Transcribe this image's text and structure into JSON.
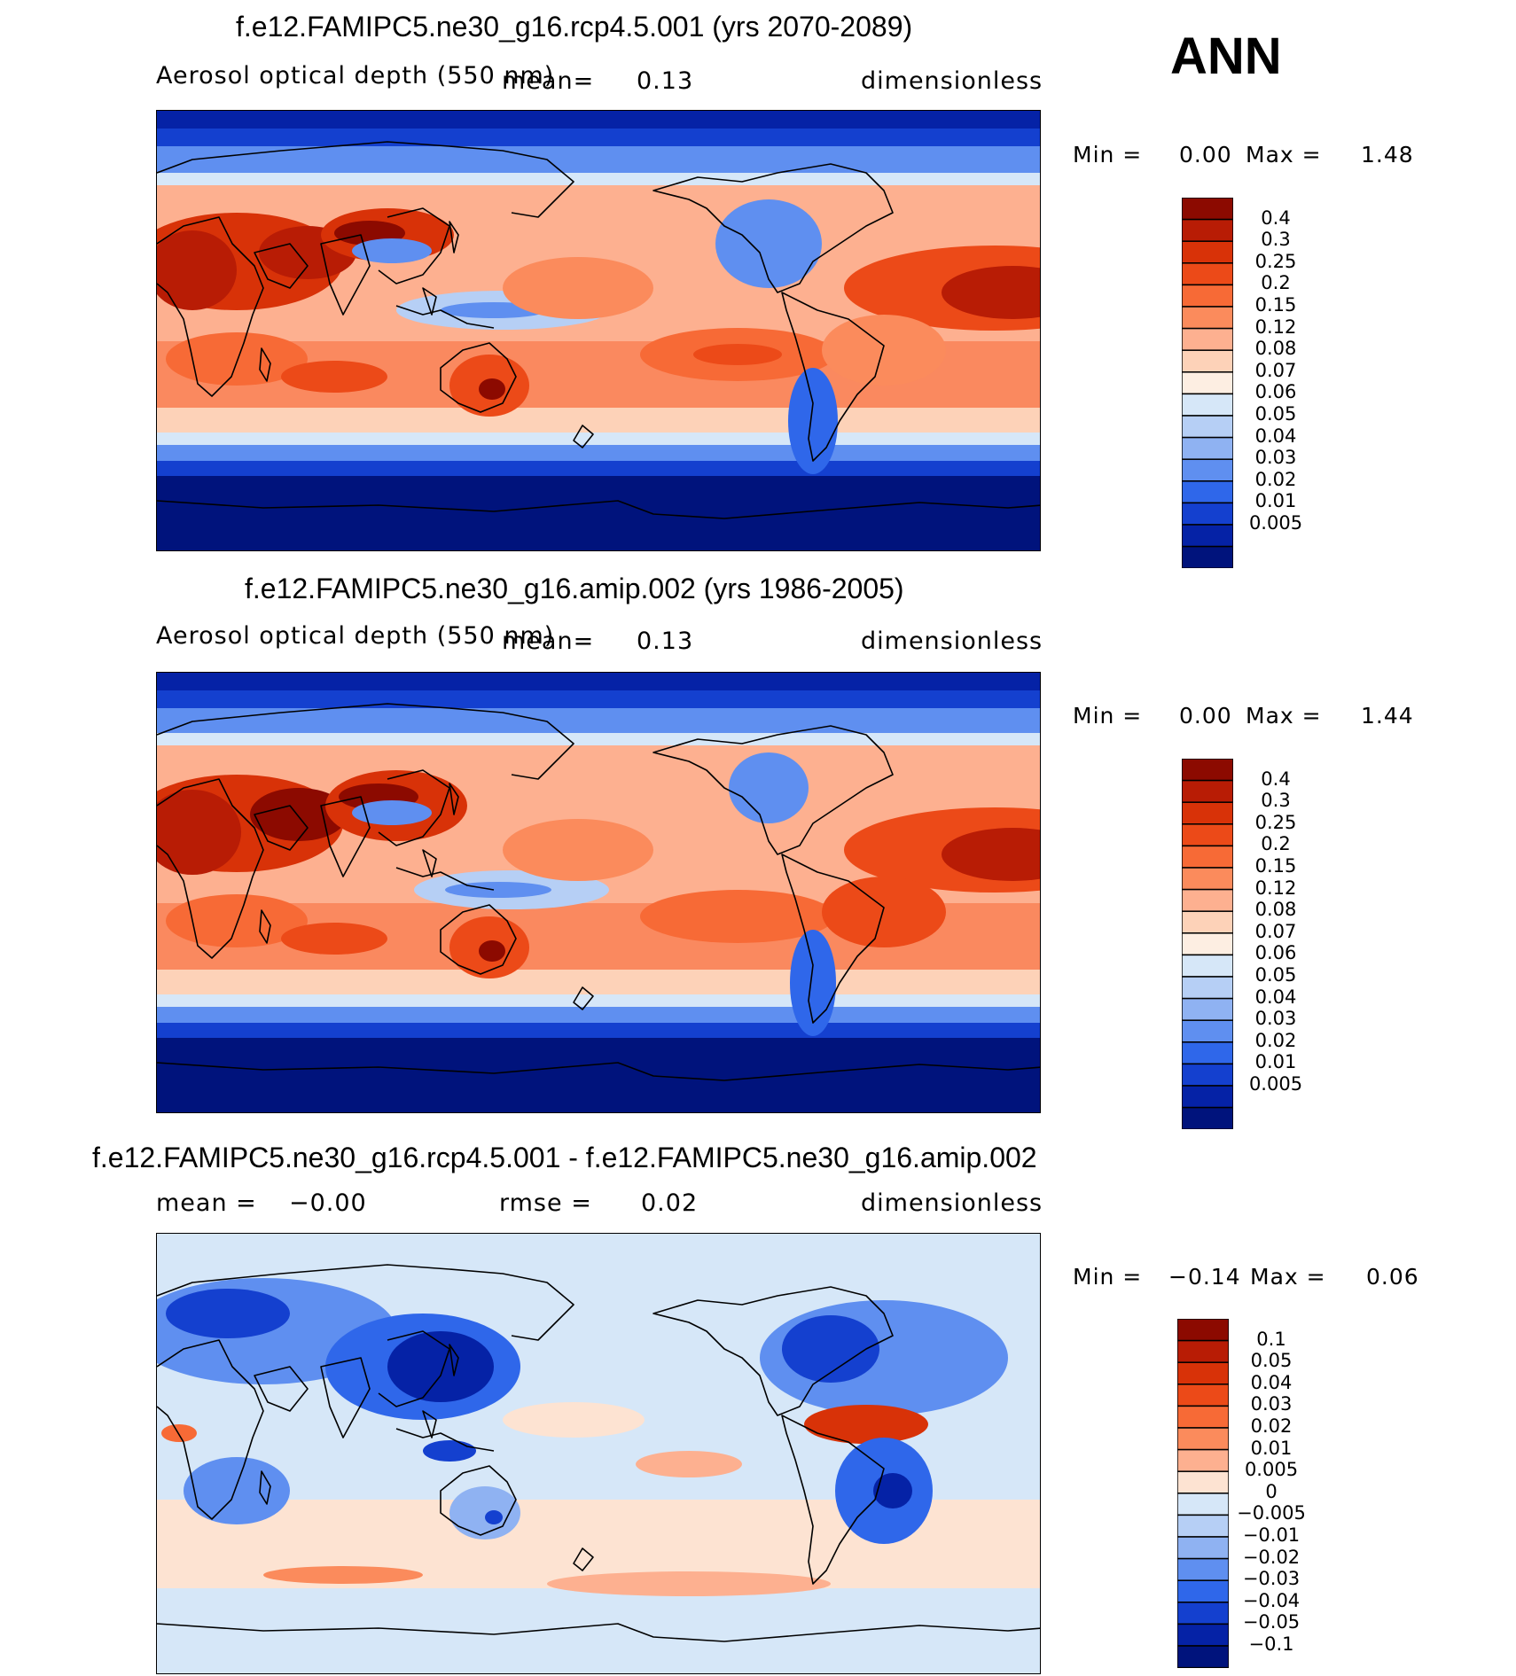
{
  "season": "ANN",
  "panels": [
    {
      "title": "f.e12.FAMIPC5.ne30_g16.rcp4.5.001 (yrs 2070-2089)",
      "variable": "Aerosol optical depth (550 nm)",
      "mean_label": "mean=",
      "mean_value": "0.13",
      "units": "dimensionless",
      "min_label": "Min =",
      "min_value": "0.00",
      "max_label": "Max =",
      "max_value": "1.48"
    },
    {
      "title": "f.e12.FAMIPC5.ne30_g16.amip.002 (yrs 1986-2005)",
      "variable": "Aerosol optical depth (550 nm)",
      "mean_label": "mean=",
      "mean_value": "0.13",
      "units": "dimensionless",
      "min_label": "Min =",
      "min_value": "0.00",
      "max_label": "Max =",
      "max_value": "1.44"
    },
    {
      "title": "f.e12.FAMIPC5.ne30_g16.rcp4.5.001 - f.e12.FAMIPC5.ne30_g16.amip.002",
      "mean_label": "mean =",
      "mean_value": "−0.00",
      "rmse_label": "rmse =",
      "rmse_value": "0.02",
      "units": "dimensionless",
      "min_label": "Min =",
      "min_value": "−0.14",
      "max_label": "Max =",
      "max_value": "0.06"
    }
  ],
  "colorbars": {
    "abs_labels": [
      "0.4",
      "0.3",
      "0.25",
      "0.2",
      "0.15",
      "0.12",
      "0.08",
      "0.07",
      "0.06",
      "0.05",
      "0.04",
      "0.03",
      "0.02",
      "0.01",
      "0.005"
    ],
    "abs_colors": [
      "#8c0a00",
      "#b81c05",
      "#d83208",
      "#ec4a18",
      "#f76a36",
      "#fb8b5c",
      "#fdb090",
      "#fdd2b8",
      "#fdeee2",
      "#d6e7f8",
      "#b6cff5",
      "#8fb2f2",
      "#5f8ff0",
      "#2f67ea",
      "#1440cf",
      "#0522a6",
      "#00137c"
    ],
    "diff_labels": [
      "0.1",
      "0.05",
      "0.04",
      "0.03",
      "0.02",
      "0.01",
      "0.005",
      "0",
      "−0.005",
      "−0.01",
      "−0.02",
      "−0.03",
      "−0.04",
      "−0.05",
      "−0.1"
    ],
    "diff_colors": [
      "#8c0a00",
      "#b81c05",
      "#d83208",
      "#ec4a18",
      "#f76a36",
      "#fb8b5c",
      "#fdb090",
      "#fde3d2",
      "#d6e7f8",
      "#b6cff5",
      "#8fb2f2",
      "#5f8ff0",
      "#2f67ea",
      "#1440cf",
      "#0522a6",
      "#00137c"
    ]
  },
  "chart_data": [
    {
      "type": "heatmap",
      "title": "f.e12.FAMIPC5.ne30_g16.rcp4.5.001 (yrs 2070-2089)",
      "variable": "Aerosol optical depth (550 nm)",
      "units": "dimensionless",
      "season": "ANN",
      "mean": 0.13,
      "min": 0.0,
      "max": 1.48,
      "contour_levels": [
        0.005,
        0.01,
        0.02,
        0.03,
        0.04,
        0.05,
        0.06,
        0.07,
        0.08,
        0.12,
        0.15,
        0.2,
        0.25,
        0.3,
        0.4
      ]
    },
    {
      "type": "heatmap",
      "title": "f.e12.FAMIPC5.ne30_g16.amip.002 (yrs 1986-2005)",
      "variable": "Aerosol optical depth (550 nm)",
      "units": "dimensionless",
      "season": "ANN",
      "mean": 0.13,
      "min": 0.0,
      "max": 1.44,
      "contour_levels": [
        0.005,
        0.01,
        0.02,
        0.03,
        0.04,
        0.05,
        0.06,
        0.07,
        0.08,
        0.12,
        0.15,
        0.2,
        0.25,
        0.3,
        0.4
      ]
    },
    {
      "type": "heatmap",
      "title": "f.e12.FAMIPC5.ne30_g16.rcp4.5.001 - f.e12.FAMIPC5.ne30_g16.amip.002",
      "units": "dimensionless",
      "season": "ANN",
      "mean": -0.0,
      "rmse": 0.02,
      "min": -0.14,
      "max": 0.06,
      "contour_levels": [
        -0.1,
        -0.05,
        -0.04,
        -0.03,
        -0.02,
        -0.01,
        -0.005,
        0,
        0.005,
        0.01,
        0.02,
        0.03,
        0.04,
        0.05,
        0.1
      ]
    }
  ]
}
